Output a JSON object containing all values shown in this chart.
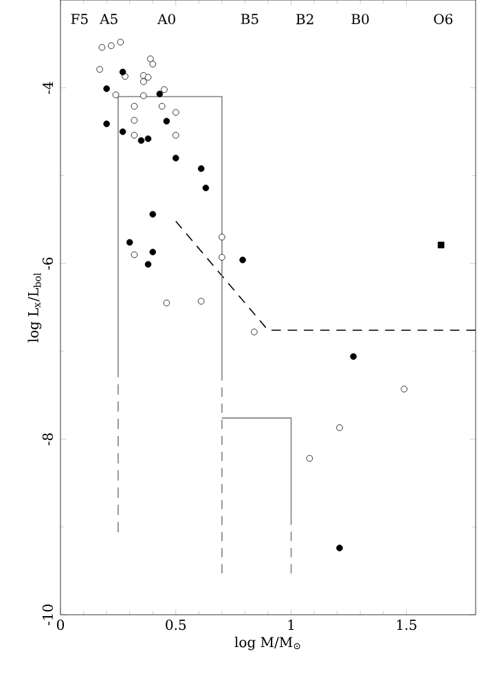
{
  "chart_data": {
    "type": "scatter",
    "xlabel": "log M/M$_{⊙}$",
    "ylabel": "log L$_{x}$/L$_{bol}$",
    "xlim": [
      0,
      1.8
    ],
    "ylim": [
      -10,
      -3
    ],
    "xticks": [
      0,
      0.5,
      1,
      1.5
    ],
    "yticks": [
      -10,
      -8,
      -6,
      -4
    ],
    "annotations": [
      "F5",
      "A5",
      "A0",
      "B5",
      "B2",
      "B0",
      "O6"
    ],
    "series": [
      {
        "marker": "circle",
        "color": "#ffffff",
        "x": [
          0.18,
          0.22,
          0.26,
          0.17,
          0.28,
          0.39,
          0.4,
          0.36,
          0.38,
          0.36,
          0.45,
          0.24,
          0.36,
          0.32,
          0.44,
          0.5,
          0.32,
          0.5,
          0.32,
          0.7,
          0.32,
          0.7,
          0.46,
          0.61,
          0.84,
          1.49,
          1.21,
          1.08
        ],
        "values": [
          -3.54,
          -3.52,
          -3.48,
          -3.79,
          -3.87,
          -3.67,
          -3.73,
          -3.86,
          -3.88,
          -3.93,
          -4.02,
          -4.08,
          -4.09,
          -4.21,
          -4.21,
          -4.28,
          -4.37,
          -4.54,
          -4.54,
          -5.7,
          -5.9,
          -5.93,
          -6.45,
          -6.43,
          -6.78,
          -7.43,
          -7.87,
          -8.22
        ]
      },
      {
        "marker": "circle",
        "color": "#000000",
        "x": [
          0.27,
          0.2,
          0.43,
          0.2,
          0.27,
          0.46,
          0.35,
          0.38,
          0.5,
          0.61,
          0.63,
          0.4,
          0.3,
          0.4,
          0.38,
          0.79,
          1.27,
          1.21
        ],
        "values": [
          -3.82,
          -4.01,
          -4.07,
          -4.41,
          -4.5,
          -4.38,
          -4.6,
          -4.58,
          -4.8,
          -4.92,
          -5.14,
          -5.44,
          -5.76,
          -5.87,
          -6.01,
          -5.96,
          -7.06,
          -9.24
        ]
      },
      {
        "marker": "square",
        "color": "#000000",
        "x": [
          1.65
        ],
        "values": [
          -5.79
        ]
      },
      {
        "type": "line",
        "line_style": "dashed",
        "marker": "none",
        "color": "#000000",
        "x": [
          0.5,
          0.9,
          1.8
        ],
        "values": [
          -5.52,
          -6.76,
          -6.76
        ]
      },
      {
        "type": "line",
        "line_style": "solid",
        "marker": "none",
        "color": "#808080",
        "x": [
          0.25,
          0.25,
          0.7,
          0.7
        ],
        "values": [
          -7.18,
          -4.1,
          -4.1,
          -7.23
        ]
      },
      {
        "type": "line",
        "line_style": "dashed",
        "marker": "none",
        "color": "#808080",
        "x": [
          0.25,
          0.25
        ],
        "values": [
          -7.18,
          -9.06
        ]
      },
      {
        "type": "line",
        "line_style": "dashed",
        "marker": "none",
        "color": "#808080",
        "x": [
          0.7,
          0.7
        ],
        "values": [
          -7.23,
          -9.53
        ]
      },
      {
        "type": "line",
        "line_style": "solid",
        "marker": "none",
        "color": "#808080",
        "x": [
          0.7,
          1.0,
          1.0
        ],
        "values": [
          -7.76,
          -7.76,
          -8.87
        ]
      },
      {
        "type": "line",
        "line_style": "dashed",
        "marker": "none",
        "color": "#808080",
        "x": [
          1.0,
          1.0
        ],
        "values": [
          -8.87,
          -9.53
        ]
      }
    ]
  }
}
